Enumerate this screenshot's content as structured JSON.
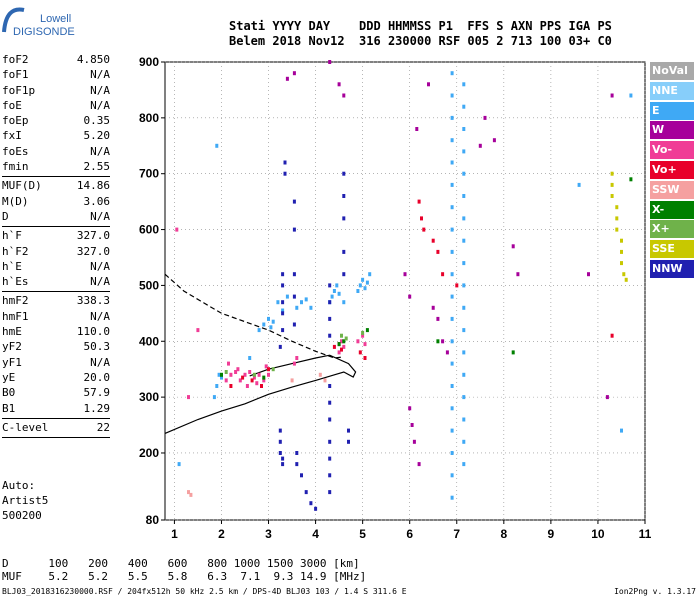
{
  "logo": {
    "line1": "Lowell",
    "line2": "DIGISONDE"
  },
  "header": {
    "labels": [
      "Stati",
      "YYYY",
      "DAY",
      "DDD",
      "HHMMSS",
      "P1",
      "FFS",
      "S",
      "AXN",
      "PPS",
      "IGA",
      "PS"
    ],
    "values": [
      "Belem",
      "2018",
      "Nov12",
      "316",
      "230000",
      "RSF",
      "005",
      "2",
      "713",
      "100",
      "03+",
      "C0"
    ]
  },
  "params": [
    {
      "name": "foF2",
      "value": "4.850"
    },
    {
      "name": "foF1",
      "value": "N/A"
    },
    {
      "name": "foF1p",
      "value": "N/A"
    },
    {
      "name": "foE",
      "value": "N/A"
    },
    {
      "name": "foEp",
      "value": "0.35"
    },
    {
      "name": "fxI",
      "value": "5.20"
    },
    {
      "name": "foEs",
      "value": "N/A"
    },
    {
      "name": "fmin",
      "value": "2.55"
    },
    {
      "sep": true
    },
    {
      "name": "MUF(D)",
      "value": "14.86"
    },
    {
      "name": "M(D)",
      "value": "3.06"
    },
    {
      "name": "D",
      "value": "N/A"
    },
    {
      "sep": true
    },
    {
      "name": "h`F",
      "value": "327.0"
    },
    {
      "name": "h`F2",
      "value": "327.0"
    },
    {
      "name": "h`E",
      "value": "N/A"
    },
    {
      "name": "h`Es",
      "value": "N/A"
    },
    {
      "sep": true
    },
    {
      "name": "hmF2",
      "value": "338.3"
    },
    {
      "name": "hmF1",
      "value": "N/A"
    },
    {
      "name": "hmE",
      "value": "110.0"
    },
    {
      "name": "yF2",
      "value": "50.3"
    },
    {
      "name": "yF1",
      "value": "N/A"
    },
    {
      "name": "yE",
      "value": "20.0"
    },
    {
      "name": "B0",
      "value": "57.9"
    },
    {
      "name": "B1",
      "value": "1.29"
    },
    {
      "sep": true
    },
    {
      "name": "C-level",
      "value": "22"
    },
    {
      "sep": true
    }
  ],
  "auto": {
    "line1": "Auto:",
    "line2": "Artist5",
    "line3": "500200"
  },
  "legend": [
    {
      "label": "NoVal",
      "color": "#a9a9a9"
    },
    {
      "label": "NNE",
      "color": "#87cefa"
    },
    {
      "label": "E",
      "color": "#3fa9f5"
    },
    {
      "label": "W",
      "color": "#a6009a"
    },
    {
      "label": "Vo-",
      "color": "#f03c96"
    },
    {
      "label": "Vo+",
      "color": "#e8002a"
    },
    {
      "label": "SSW",
      "color": "#f5a0a0"
    },
    {
      "label": "X-",
      "color": "#008000"
    },
    {
      "label": "X+",
      "color": "#6fb24a"
    },
    {
      "label": "SSE",
      "color": "#c8c800"
    },
    {
      "label": "NNW",
      "color": "#2020b0"
    }
  ],
  "dmuf": {
    "d_label": "D",
    "d_values": [
      "100",
      "200",
      "400",
      "600",
      "800",
      "1000",
      "1500",
      "3000"
    ],
    "d_unit": "[km]",
    "muf_label": "MUF",
    "muf_values": [
      "5.2",
      "5.2",
      "5.5",
      "5.8",
      "6.3",
      "7.1",
      "9.3",
      "14.9"
    ],
    "muf_unit": "[MHz]"
  },
  "footer": "BLJ03_2018316230000.RSF / 204fx512h 50 kHz 2.5 km / DPS-4D BLJ03 103 / 1.4 S 311.6 E",
  "version": "Ion2Png v. 1.3.17",
  "chart_data": {
    "type": "scatter",
    "x": {
      "ticks": [
        1,
        2,
        3,
        4,
        5,
        6,
        7,
        8,
        9,
        10,
        11
      ],
      "range": [
        0.8,
        11
      ],
      "label": ""
    },
    "y": {
      "ticks": [
        80,
        200,
        300,
        400,
        500,
        600,
        700,
        800,
        900
      ],
      "range": [
        80,
        900
      ],
      "label": ""
    },
    "grid": true,
    "series": [
      {
        "name": "E",
        "color": "#3fa9f5",
        "points": [
          [
            1.85,
            300
          ],
          [
            1.9,
            320
          ],
          [
            1.95,
            340
          ],
          [
            2.0,
            335
          ],
          [
            2.8,
            420
          ],
          [
            2.9,
            430
          ],
          [
            3.0,
            440
          ],
          [
            3.05,
            425
          ],
          [
            3.1,
            435
          ],
          [
            3.2,
            470
          ],
          [
            3.3,
            455
          ],
          [
            3.4,
            480
          ],
          [
            3.6,
            460
          ],
          [
            3.7,
            470
          ],
          [
            3.8,
            475
          ],
          [
            3.9,
            460
          ],
          [
            4.3,
            470
          ],
          [
            4.35,
            480
          ],
          [
            4.4,
            490
          ],
          [
            4.45,
            500
          ],
          [
            4.5,
            485
          ],
          [
            4.6,
            470
          ],
          [
            4.9,
            490
          ],
          [
            4.95,
            500
          ],
          [
            5.0,
            510
          ],
          [
            5.05,
            495
          ],
          [
            5.1,
            505
          ],
          [
            5.15,
            520
          ],
          [
            6.9,
            880
          ],
          [
            6.9,
            840
          ],
          [
            6.9,
            800
          ],
          [
            6.9,
            760
          ],
          [
            6.9,
            720
          ],
          [
            6.9,
            680
          ],
          [
            6.9,
            640
          ],
          [
            6.9,
            600
          ],
          [
            6.9,
            560
          ],
          [
            6.9,
            520
          ],
          [
            6.9,
            480
          ],
          [
            6.9,
            440
          ],
          [
            6.9,
            400
          ],
          [
            6.9,
            360
          ],
          [
            6.9,
            320
          ],
          [
            6.9,
            280
          ],
          [
            6.9,
            240
          ],
          [
            6.9,
            200
          ],
          [
            6.9,
            160
          ],
          [
            6.9,
            120
          ],
          [
            7.15,
            860
          ],
          [
            7.15,
            820
          ],
          [
            7.15,
            780
          ],
          [
            7.15,
            740
          ],
          [
            7.15,
            700
          ],
          [
            7.15,
            660
          ],
          [
            7.15,
            620
          ],
          [
            7.15,
            580
          ],
          [
            7.15,
            540
          ],
          [
            7.15,
            500
          ],
          [
            7.15,
            460
          ],
          [
            7.15,
            420
          ],
          [
            7.15,
            380
          ],
          [
            7.15,
            340
          ],
          [
            7.15,
            300
          ],
          [
            7.15,
            260
          ],
          [
            7.15,
            220
          ],
          [
            7.15,
            180
          ],
          [
            1.1,
            180
          ],
          [
            1.9,
            750
          ],
          [
            2.6,
            370
          ],
          [
            9.6,
            680
          ],
          [
            10.7,
            840
          ],
          [
            10.5,
            240
          ]
        ]
      },
      {
        "name": "W",
        "color": "#a6009a",
        "points": [
          [
            3.4,
            870
          ],
          [
            3.55,
            880
          ],
          [
            4.3,
            900
          ],
          [
            4.5,
            860
          ],
          [
            4.6,
            840
          ],
          [
            5.9,
            520
          ],
          [
            6.0,
            480
          ],
          [
            6.0,
            280
          ],
          [
            6.05,
            250
          ],
          [
            6.1,
            220
          ],
          [
            6.15,
            780
          ],
          [
            6.2,
            180
          ],
          [
            6.4,
            860
          ],
          [
            6.5,
            460
          ],
          [
            6.6,
            440
          ],
          [
            6.7,
            400
          ],
          [
            6.8,
            380
          ],
          [
            7.5,
            750
          ],
          [
            7.6,
            800
          ],
          [
            7.8,
            760
          ],
          [
            8.2,
            570
          ],
          [
            8.3,
            520
          ],
          [
            9.8,
            520
          ],
          [
            10.3,
            840
          ],
          [
            10.2,
            300
          ]
        ]
      },
      {
        "name": "Vo-",
        "color": "#f03c96",
        "points": [
          [
            2.1,
            330
          ],
          [
            2.2,
            340
          ],
          [
            2.3,
            345
          ],
          [
            2.4,
            330
          ],
          [
            2.5,
            340
          ],
          [
            2.6,
            345
          ],
          [
            2.7,
            335
          ],
          [
            2.8,
            340
          ],
          [
            2.9,
            330
          ],
          [
            3.0,
            340
          ],
          [
            2.15,
            360
          ],
          [
            2.35,
            350
          ],
          [
            2.55,
            320
          ],
          [
            2.75,
            325
          ],
          [
            2.95,
            355
          ],
          [
            4.5,
            380
          ],
          [
            4.55,
            400
          ],
          [
            4.6,
            390
          ],
          [
            4.9,
            400
          ],
          [
            5.0,
            410
          ],
          [
            5.05,
            395
          ],
          [
            1.05,
            600
          ],
          [
            1.3,
            300
          ],
          [
            1.5,
            420
          ],
          [
            3.55,
            360
          ],
          [
            3.6,
            370
          ]
        ]
      },
      {
        "name": "Vo+",
        "color": "#e8002a",
        "points": [
          [
            2.2,
            320
          ],
          [
            2.45,
            335
          ],
          [
            2.65,
            330
          ],
          [
            2.85,
            320
          ],
          [
            3.0,
            350
          ],
          [
            4.4,
            390
          ],
          [
            4.5,
            395
          ],
          [
            4.55,
            385
          ],
          [
            4.95,
            380
          ],
          [
            5.05,
            370
          ],
          [
            6.2,
            650
          ],
          [
            6.25,
            620
          ],
          [
            6.3,
            600
          ],
          [
            6.5,
            580
          ],
          [
            6.6,
            560
          ],
          [
            6.7,
            520
          ],
          [
            7.0,
            500
          ],
          [
            10.3,
            410
          ]
        ]
      },
      {
        "name": "SSW",
        "color": "#f5a0a0",
        "points": [
          [
            1.3,
            130
          ],
          [
            1.35,
            125
          ],
          [
            3.5,
            330
          ],
          [
            4.1,
            340
          ],
          [
            4.2,
            330
          ]
        ]
      },
      {
        "name": "X-",
        "color": "#008000",
        "points": [
          [
            2.0,
            340
          ],
          [
            2.9,
            335
          ],
          [
            4.5,
            395
          ],
          [
            4.6,
            400
          ],
          [
            5.1,
            420
          ],
          [
            6.6,
            400
          ],
          [
            8.2,
            380
          ],
          [
            10.7,
            690
          ]
        ]
      },
      {
        "name": "X+",
        "color": "#6fb24a",
        "points": [
          [
            2.1,
            345
          ],
          [
            2.7,
            340
          ],
          [
            3.1,
            350
          ],
          [
            4.55,
            410
          ],
          [
            4.65,
            405
          ],
          [
            5.0,
            415
          ]
        ]
      },
      {
        "name": "SSE",
        "color": "#c8c800",
        "points": [
          [
            10.3,
            700
          ],
          [
            10.3,
            680
          ],
          [
            10.3,
            660
          ],
          [
            10.4,
            640
          ],
          [
            10.4,
            620
          ],
          [
            10.4,
            600
          ],
          [
            10.5,
            580
          ],
          [
            10.5,
            560
          ],
          [
            10.5,
            540
          ],
          [
            10.55,
            520
          ],
          [
            10.6,
            510
          ]
        ]
      },
      {
        "name": "NNW",
        "color": "#2020b0",
        "points": [
          [
            3.35,
            720
          ],
          [
            3.35,
            700
          ],
          [
            3.3,
            520
          ],
          [
            3.3,
            500
          ],
          [
            3.3,
            470
          ],
          [
            3.3,
            450
          ],
          [
            3.3,
            420
          ],
          [
            3.25,
            390
          ],
          [
            3.25,
            240
          ],
          [
            3.25,
            220
          ],
          [
            3.25,
            200
          ],
          [
            3.3,
            190
          ],
          [
            3.3,
            180
          ],
          [
            3.55,
            650
          ],
          [
            3.55,
            600
          ],
          [
            3.55,
            520
          ],
          [
            3.55,
            480
          ],
          [
            3.55,
            430
          ],
          [
            4.3,
            500
          ],
          [
            4.3,
            470
          ],
          [
            4.3,
            440
          ],
          [
            4.3,
            410
          ],
          [
            4.3,
            320
          ],
          [
            4.3,
            290
          ],
          [
            4.3,
            260
          ],
          [
            4.3,
            220
          ],
          [
            4.3,
            190
          ],
          [
            4.3,
            160
          ],
          [
            4.3,
            130
          ],
          [
            4.6,
            700
          ],
          [
            4.6,
            660
          ],
          [
            4.6,
            620
          ],
          [
            4.6,
            560
          ],
          [
            4.6,
            520
          ],
          [
            4.7,
            240
          ],
          [
            4.7,
            220
          ],
          [
            3.6,
            200
          ],
          [
            3.6,
            180
          ],
          [
            3.7,
            160
          ],
          [
            3.8,
            130
          ],
          [
            3.9,
            110
          ],
          [
            4.0,
            100
          ]
        ]
      }
    ],
    "curves": [
      {
        "name": "trace_lower",
        "color": "#000",
        "dashed": false,
        "points": [
          [
            0.8,
            235
          ],
          [
            1.5,
            260
          ],
          [
            2.0,
            275
          ],
          [
            2.5,
            288
          ],
          [
            3.0,
            305
          ],
          [
            3.5,
            318
          ],
          [
            4.0,
            330
          ],
          [
            4.4,
            340
          ],
          [
            4.6,
            345
          ],
          [
            4.8,
            336
          ],
          [
            4.85,
            345
          ],
          [
            4.7,
            360
          ],
          [
            4.3,
            375
          ],
          [
            4.0,
            370
          ],
          [
            3.5,
            360
          ],
          [
            3.0,
            350
          ],
          [
            2.6,
            338
          ]
        ]
      },
      {
        "name": "trace_dashed",
        "color": "#000",
        "dashed": true,
        "points": [
          [
            0.8,
            520
          ],
          [
            1.2,
            490
          ],
          [
            1.6,
            470
          ],
          [
            2.0,
            450
          ],
          [
            2.5,
            435
          ],
          [
            3.0,
            420
          ],
          [
            3.5,
            400
          ],
          [
            4.0,
            382
          ],
          [
            4.4,
            370
          ],
          [
            4.6,
            372
          ]
        ]
      }
    ]
  }
}
